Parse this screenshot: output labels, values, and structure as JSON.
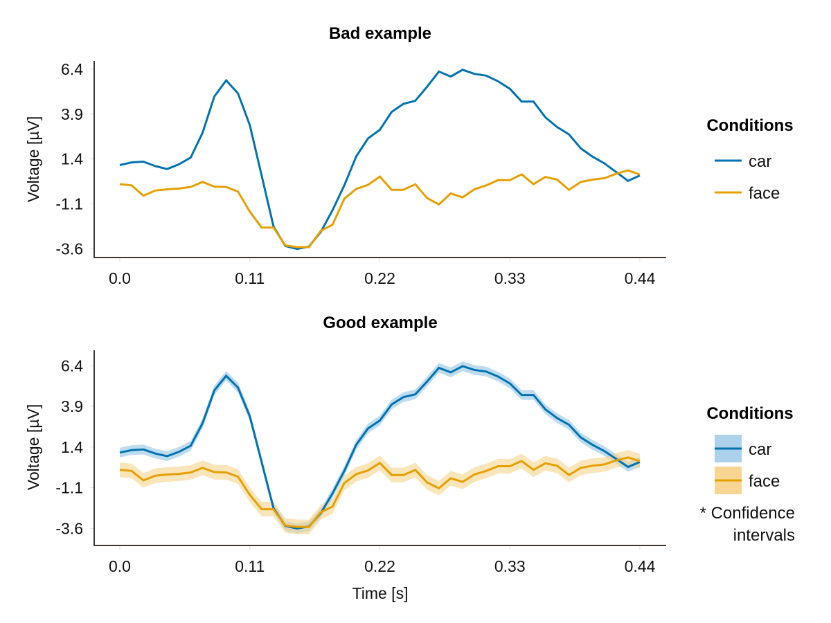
{
  "colors": {
    "car": "#0072b2",
    "face": "#e69f00",
    "car_band": "#9ccae6",
    "face_band": "#f5d48c",
    "spine": "#3d3630",
    "tick": "#e8ddd0"
  },
  "chart_data": [
    {
      "type": "line",
      "title": "Bad example",
      "xlabel": "",
      "ylabel": "Voltage [µV]",
      "xlim": [
        0.0,
        0.44
      ],
      "ylim": [
        -3.6,
        6.4
      ],
      "xticks": [
        0.0,
        0.11,
        0.22,
        0.33,
        0.44
      ],
      "xtick_labels": [
        "0.0",
        "0.11",
        "0.22",
        "0.33",
        "0.44"
      ],
      "yticks": [
        6.4,
        3.9,
        1.4,
        -1.1,
        -3.6
      ],
      "ytick_labels": [
        "6.4",
        "3.9",
        "1.4",
        "-1.1",
        "-3.6"
      ],
      "grid": false,
      "legend": {
        "title": "Conditions",
        "position": "right",
        "entries": [
          "car",
          "face"
        ]
      },
      "x": [
        0.0,
        0.01,
        0.02,
        0.03,
        0.04,
        0.05,
        0.06,
        0.07,
        0.08,
        0.09,
        0.1,
        0.11,
        0.12,
        0.13,
        0.14,
        0.15,
        0.16,
        0.17,
        0.18,
        0.19,
        0.2,
        0.21,
        0.22,
        0.23,
        0.24,
        0.25,
        0.26,
        0.27,
        0.28,
        0.29,
        0.3,
        0.31,
        0.32,
        0.33,
        0.34,
        0.35,
        0.36,
        0.37,
        0.38,
        0.39,
        0.4,
        0.41,
        0.42,
        0.43,
        0.44
      ],
      "series": [
        {
          "name": "car",
          "values": [
            1.06,
            1.21,
            1.25,
            1.0,
            0.84,
            1.1,
            1.48,
            2.86,
            4.88,
            5.78,
            5.05,
            3.28,
            0.48,
            -2.35,
            -3.45,
            -3.61,
            -3.48,
            -2.67,
            -1.45,
            -0.06,
            1.54,
            2.54,
            3.03,
            4.02,
            4.47,
            4.64,
            5.43,
            6.27,
            5.99,
            6.37,
            6.14,
            6.04,
            5.73,
            5.31,
            4.6,
            4.6,
            3.72,
            3.18,
            2.77,
            1.99,
            1.53,
            1.15,
            0.67,
            0.18,
            0.48
          ]
        },
        {
          "name": "face",
          "values": [
            0.0,
            -0.07,
            -0.65,
            -0.36,
            -0.29,
            -0.25,
            -0.16,
            0.12,
            -0.14,
            -0.16,
            -0.42,
            -1.54,
            -2.42,
            -2.42,
            -3.42,
            -3.51,
            -3.51,
            -2.61,
            -2.26,
            -0.81,
            -0.27,
            -0.04,
            0.42,
            -0.32,
            -0.32,
            -0.01,
            -0.78,
            -1.13,
            -0.52,
            -0.74,
            -0.29,
            -0.07,
            0.22,
            0.22,
            0.54,
            0.0,
            0.4,
            0.25,
            -0.32,
            0.12,
            0.25,
            0.33,
            0.58,
            0.76,
            0.53
          ]
        }
      ]
    },
    {
      "type": "area",
      "title": "Good example",
      "xlabel": "Time [s]",
      "ylabel": "Voltage [µV]",
      "xlim": [
        0.0,
        0.44
      ],
      "ylim": [
        -3.6,
        6.4
      ],
      "xticks": [
        0.0,
        0.11,
        0.22,
        0.33,
        0.44
      ],
      "xtick_labels": [
        "0.0",
        "0.11",
        "0.22",
        "0.33",
        "0.44"
      ],
      "yticks": [
        6.4,
        3.9,
        1.4,
        -1.1,
        -3.6
      ],
      "ytick_labels": [
        "6.4",
        "3.9",
        "1.4",
        "-1.1",
        "-3.6"
      ],
      "grid": false,
      "legend": {
        "title": "Conditions",
        "position": "right",
        "entries": [
          "car",
          "face"
        ],
        "note_line1": "* Confidence",
        "note_line2": "intervals"
      },
      "confidence_halfwidth": {
        "car": 0.3,
        "face": 0.45
      },
      "x": [
        0.0,
        0.01,
        0.02,
        0.03,
        0.04,
        0.05,
        0.06,
        0.07,
        0.08,
        0.09,
        0.1,
        0.11,
        0.12,
        0.13,
        0.14,
        0.15,
        0.16,
        0.17,
        0.18,
        0.19,
        0.2,
        0.21,
        0.22,
        0.23,
        0.24,
        0.25,
        0.26,
        0.27,
        0.28,
        0.29,
        0.3,
        0.31,
        0.32,
        0.33,
        0.34,
        0.35,
        0.36,
        0.37,
        0.38,
        0.39,
        0.4,
        0.41,
        0.42,
        0.43,
        0.44
      ],
      "series": [
        {
          "name": "car",
          "values": [
            1.06,
            1.21,
            1.25,
            1.0,
            0.84,
            1.1,
            1.48,
            2.86,
            4.88,
            5.78,
            5.05,
            3.28,
            0.48,
            -2.35,
            -3.45,
            -3.61,
            -3.48,
            -2.67,
            -1.45,
            -0.06,
            1.54,
            2.54,
            3.03,
            4.02,
            4.47,
            4.64,
            5.43,
            6.27,
            5.99,
            6.37,
            6.14,
            6.04,
            5.73,
            5.31,
            4.6,
            4.6,
            3.72,
            3.18,
            2.77,
            1.99,
            1.53,
            1.15,
            0.67,
            0.18,
            0.48
          ]
        },
        {
          "name": "face",
          "values": [
            0.0,
            -0.07,
            -0.65,
            -0.36,
            -0.29,
            -0.25,
            -0.16,
            0.12,
            -0.14,
            -0.16,
            -0.42,
            -1.54,
            -2.42,
            -2.42,
            -3.42,
            -3.51,
            -3.51,
            -2.61,
            -2.26,
            -0.81,
            -0.27,
            -0.04,
            0.42,
            -0.32,
            -0.32,
            -0.01,
            -0.78,
            -1.13,
            -0.52,
            -0.74,
            -0.29,
            -0.07,
            0.22,
            0.22,
            0.54,
            0.0,
            0.4,
            0.25,
            -0.32,
            0.12,
            0.25,
            0.33,
            0.58,
            0.76,
            0.53
          ]
        }
      ]
    }
  ]
}
